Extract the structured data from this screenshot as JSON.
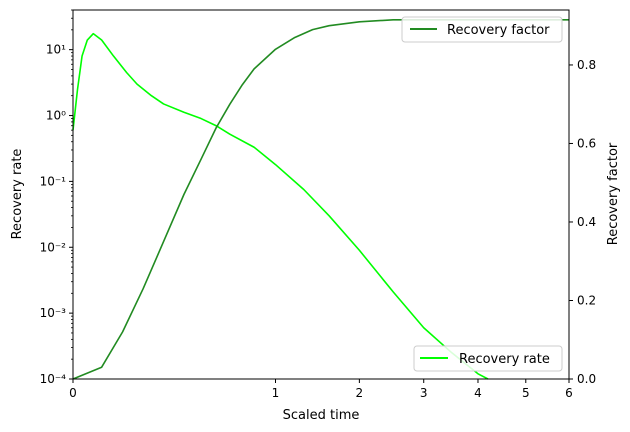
{
  "chart_data": {
    "type": "line",
    "x_axis": {
      "label": "Scaled time",
      "scale": "sqrt",
      "range": [
        0,
        6
      ],
      "tick_labels": [
        "0",
        "1",
        "2",
        "3",
        "4",
        "5",
        "6"
      ]
    },
    "y_axis_left": {
      "label": "Recovery rate",
      "scale": "log",
      "range": [
        0.0001,
        40
      ],
      "tick_labels": [
        "10⁻⁴",
        "10⁻³",
        "10⁻²",
        "10⁻¹",
        "10⁰",
        "10¹"
      ]
    },
    "y_axis_right": {
      "label": "Recovery factor",
      "scale": "linear",
      "range": [
        0,
        0.94
      ],
      "tick_labels": [
        "0.0",
        "0.2",
        "0.4",
        "0.6",
        "0.8"
      ]
    },
    "series": [
      {
        "name": "Recovery rate",
        "axis": "left",
        "color": "#00ff00",
        "x": [
          0,
          0.0005,
          0.002,
          0.005,
          0.01,
          0.02,
          0.04,
          0.07,
          0.1,
          0.15,
          0.2,
          0.3,
          0.4,
          0.5,
          0.6,
          0.8,
          1.0,
          1.3,
          1.6,
          2.0,
          2.5,
          3.0,
          3.5,
          4.0,
          4.2
        ],
        "y": [
          0.6,
          2.5,
          8.0,
          14.0,
          17.5,
          14.0,
          8.0,
          4.5,
          3.0,
          2.0,
          1.5,
          1.12,
          0.9,
          0.7,
          0.52,
          0.33,
          0.18,
          0.075,
          0.03,
          0.009,
          0.0021,
          0.0006,
          0.00025,
          0.00012,
          0.0001
        ]
      },
      {
        "name": "Recovery factor",
        "axis": "right",
        "color": "#228b22",
        "x": [
          0,
          0.02,
          0.06,
          0.12,
          0.2,
          0.3,
          0.4,
          0.5,
          0.6,
          0.7,
          0.8,
          1.0,
          1.2,
          1.4,
          1.6,
          2.0,
          2.5,
          3.0,
          4.0,
          5.0,
          6.0
        ],
        "y": [
          0,
          0.03,
          0.12,
          0.23,
          0.35,
          0.47,
          0.56,
          0.64,
          0.7,
          0.75,
          0.79,
          0.84,
          0.87,
          0.89,
          0.9,
          0.91,
          0.915,
          0.915,
          0.915,
          0.915,
          0.915
        ]
      }
    ],
    "legends": [
      {
        "label": "Recovery factor",
        "color": "#228b22",
        "placement": "upper right"
      },
      {
        "label": "Recovery rate",
        "color": "#00ff00",
        "placement": "lower right"
      }
    ]
  }
}
